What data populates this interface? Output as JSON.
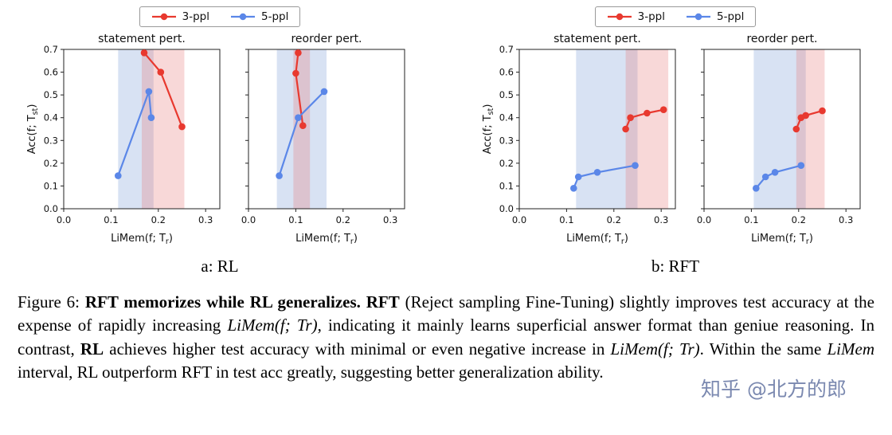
{
  "figure": {
    "legend": {
      "items": [
        {
          "label": "3-ppl",
          "color": "#e8392f"
        },
        {
          "label": "5-ppl",
          "color": "#5b87e8"
        }
      ]
    },
    "panels": [
      {
        "caption": "a: RL"
      },
      {
        "caption": "b: RFT"
      }
    ]
  },
  "colors": {
    "red": "#e8392f",
    "blue": "#5b87e8",
    "band_blue": "#7d9fd6",
    "band_red": "#e57373"
  },
  "chart_data": [
    {
      "type": "line",
      "title": "statement pert.",
      "xlabel": "LiMem(f; T_r)",
      "ylabel": "Acc(f; T_st)",
      "ytick_labels": true,
      "xlim": [
        0,
        0.33
      ],
      "ylim": [
        0,
        0.7
      ],
      "xticks": [
        0,
        0.1,
        0.2,
        0.3
      ],
      "yticks": [
        0,
        0.1,
        0.2,
        0.3,
        0.4,
        0.5,
        0.6,
        0.7
      ],
      "bands": [
        {
          "from": 0.115,
          "to": 0.19,
          "color": "band_blue",
          "opacity": 0.3
        },
        {
          "from": 0.165,
          "to": 0.255,
          "color": "band_red",
          "opacity": 0.28
        }
      ],
      "series": [
        {
          "name": "3-ppl",
          "color": "red",
          "points": [
            [
              0.17,
              0.685
            ],
            [
              0.205,
              0.6
            ],
            [
              0.25,
              0.36
            ]
          ]
        },
        {
          "name": "5-ppl",
          "color": "blue",
          "points": [
            [
              0.115,
              0.145
            ],
            [
              0.18,
              0.515
            ],
            [
              0.185,
              0.4
            ]
          ]
        }
      ]
    },
    {
      "type": "line",
      "title": "reorder pert.",
      "xlabel": "LiMem(f; T_r)",
      "ylabel": "",
      "ytick_labels": false,
      "xlim": [
        0,
        0.33
      ],
      "ylim": [
        0,
        0.7
      ],
      "xticks": [
        0,
        0.1,
        0.2,
        0.3
      ],
      "yticks": [
        0,
        0.1,
        0.2,
        0.3,
        0.4,
        0.5,
        0.6,
        0.7
      ],
      "bands": [
        {
          "from": 0.06,
          "to": 0.165,
          "color": "band_blue",
          "opacity": 0.3
        },
        {
          "from": 0.095,
          "to": 0.13,
          "color": "band_red",
          "opacity": 0.28
        }
      ],
      "series": [
        {
          "name": "3-ppl",
          "color": "red",
          "points": [
            [
              0.105,
              0.685
            ],
            [
              0.1,
              0.595
            ],
            [
              0.115,
              0.365
            ]
          ]
        },
        {
          "name": "5-ppl",
          "color": "blue",
          "points": [
            [
              0.065,
              0.145
            ],
            [
              0.105,
              0.4
            ],
            [
              0.16,
              0.515
            ]
          ]
        }
      ]
    },
    {
      "type": "line",
      "title": "statement pert.",
      "xlabel": "LiMem(f; T_r)",
      "ylabel": "Acc(f; T_st)",
      "ytick_labels": true,
      "xlim": [
        0,
        0.33
      ],
      "ylim": [
        0,
        0.7
      ],
      "xticks": [
        0,
        0.1,
        0.2,
        0.3
      ],
      "yticks": [
        0,
        0.1,
        0.2,
        0.3,
        0.4,
        0.5,
        0.6,
        0.7
      ],
      "bands": [
        {
          "from": 0.12,
          "to": 0.25,
          "color": "band_blue",
          "opacity": 0.3
        },
        {
          "from": 0.225,
          "to": 0.315,
          "color": "band_red",
          "opacity": 0.28
        }
      ],
      "series": [
        {
          "name": "3-ppl",
          "color": "red",
          "points": [
            [
              0.225,
              0.35
            ],
            [
              0.235,
              0.4
            ],
            [
              0.27,
              0.42
            ],
            [
              0.305,
              0.435
            ]
          ]
        },
        {
          "name": "5-ppl",
          "color": "blue",
          "points": [
            [
              0.115,
              0.09
            ],
            [
              0.125,
              0.14
            ],
            [
              0.165,
              0.16
            ],
            [
              0.245,
              0.19
            ]
          ]
        }
      ]
    },
    {
      "type": "line",
      "title": "reorder pert.",
      "xlabel": "LiMem(f; T_r)",
      "ylabel": "",
      "ytick_labels": false,
      "xlim": [
        0,
        0.33
      ],
      "ylim": [
        0,
        0.7
      ],
      "xticks": [
        0,
        0.1,
        0.2,
        0.3
      ],
      "yticks": [
        0,
        0.1,
        0.2,
        0.3,
        0.4,
        0.5,
        0.6,
        0.7
      ],
      "bands": [
        {
          "from": 0.105,
          "to": 0.215,
          "color": "band_blue",
          "opacity": 0.3
        },
        {
          "from": 0.195,
          "to": 0.255,
          "color": "band_red",
          "opacity": 0.28
        }
      ],
      "series": [
        {
          "name": "3-ppl",
          "color": "red",
          "points": [
            [
              0.195,
              0.35
            ],
            [
              0.205,
              0.4
            ],
            [
              0.215,
              0.41
            ],
            [
              0.25,
              0.43
            ]
          ]
        },
        {
          "name": "5-ppl",
          "color": "blue",
          "points": [
            [
              0.11,
              0.09
            ],
            [
              0.13,
              0.14
            ],
            [
              0.15,
              0.16
            ],
            [
              0.205,
              0.19
            ]
          ]
        }
      ]
    }
  ],
  "caption_segments": [
    {
      "text": "Figure 6: ",
      "style": "normal"
    },
    {
      "text": "RFT memorizes while RL generalizes. ",
      "style": "bold"
    },
    {
      "text": "RFT",
      "style": "bold"
    },
    {
      "text": " (Reject sampling Fine-Tuning) slightly improves test accuracy at the expense of rapidly increasing ",
      "style": "normal"
    },
    {
      "text": "LiMem(f; Tr)",
      "style": "italic"
    },
    {
      "text": ", indicating it mainly learns superficial answer format than geniue reasoning. In contrast, ",
      "style": "normal"
    },
    {
      "text": "RL",
      "style": "bold"
    },
    {
      "text": " achieves higher test accuracy with minimal or even negative increase in ",
      "style": "normal"
    },
    {
      "text": "LiMem(f; Tr)",
      "style": "italic"
    },
    {
      "text": ". Within the same ",
      "style": "normal"
    },
    {
      "text": "LiMem",
      "style": "italic"
    },
    {
      "text": " interval, RL outperform RFT in test acc greatly, suggesting better generalization ability.",
      "style": "normal"
    }
  ],
  "watermark": "知乎 @北方的郎"
}
